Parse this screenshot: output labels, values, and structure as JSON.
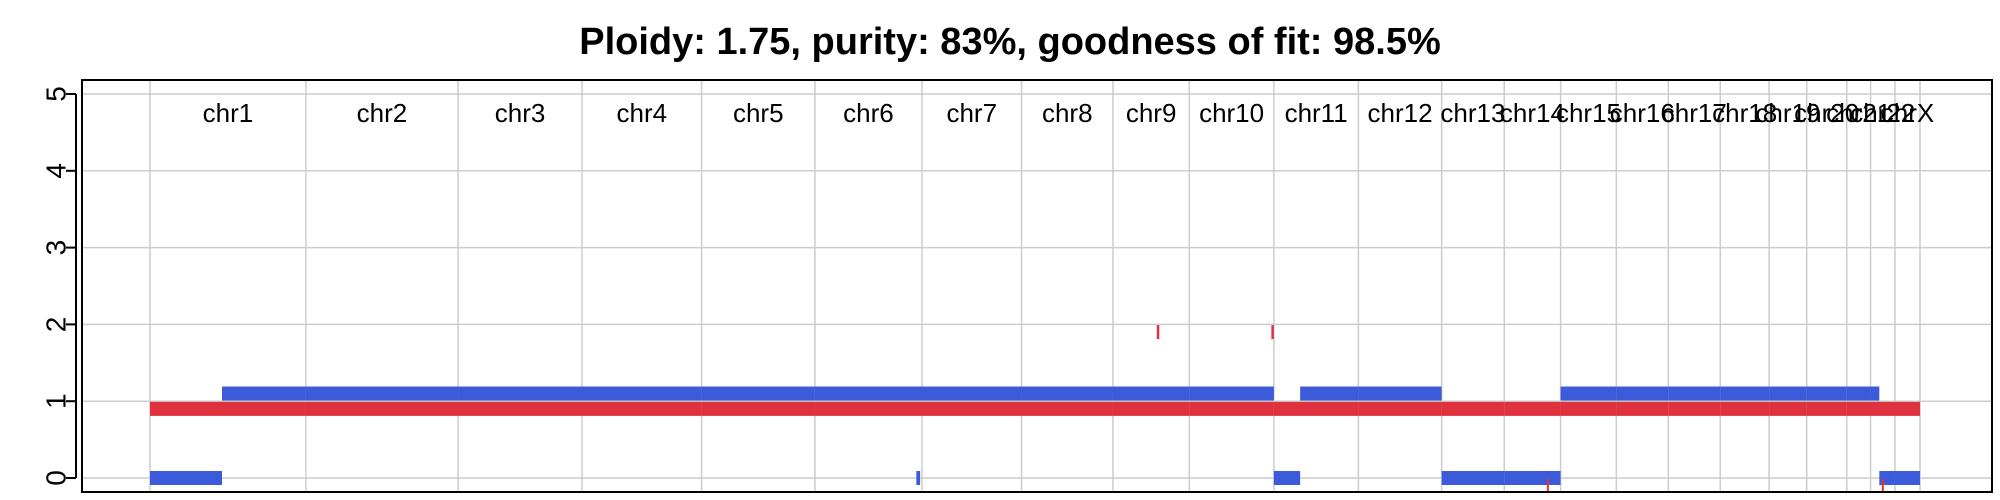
{
  "chart_data": {
    "type": "segments",
    "title": "Ploidy: 1.75, purity: 83%, goodness of fit: 98.5%",
    "xlabel": "",
    "ylabel": "",
    "ylim": [
      0,
      5
    ],
    "yticks": [
      0,
      1,
      2,
      3,
      4,
      5
    ],
    "grid": true,
    "colors": {
      "major": "#3b5bdb",
      "minor": "#e0313f",
      "grid": "#cccccc"
    },
    "chromosomes": [
      {
        "label": "chr1",
        "length": 249
      },
      {
        "label": "chr2",
        "length": 243
      },
      {
        "label": "chr3",
        "length": 198
      },
      {
        "label": "chr4",
        "length": 191
      },
      {
        "label": "chr5",
        "length": 181
      },
      {
        "label": "chr6",
        "length": 171
      },
      {
        "label": "chr7",
        "length": 159
      },
      {
        "label": "chr8",
        "length": 146
      },
      {
        "label": "chr9",
        "length": 122
      },
      {
        "label": "chr10",
        "length": 135
      },
      {
        "label": "chr11",
        "length": 135
      },
      {
        "label": "chr12",
        "length": 133
      },
      {
        "label": "chr13",
        "length": 100
      },
      {
        "label": "chr14",
        "length": 90
      },
      {
        "label": "chr15",
        "length": 89
      },
      {
        "label": "chr16",
        "length": 83
      },
      {
        "label": "chr17",
        "length": 83
      },
      {
        "label": "chr18",
        "length": 78
      },
      {
        "label": "chr19",
        "length": 60
      },
      {
        "label": "chr20",
        "length": 64
      },
      {
        "label": "chr21",
        "length": 38
      },
      {
        "label": "chr22",
        "length": 39
      },
      {
        "label": "chrX",
        "length": 40
      }
    ],
    "series": [
      {
        "segments": [
          {
            "chrom": "chr1",
            "start": 0,
            "end": 115,
            "value": 0
          },
          {
            "chrom": "chr1",
            "start": 115,
            "end": 249,
            "value": 1.1
          },
          {
            "chrom": "chr2",
            "start": 0,
            "end": 243,
            "value": 1.1
          },
          {
            "chrom": "chr3",
            "start": 0,
            "end": 198,
            "value": 1.1
          },
          {
            "chrom": "chr4",
            "start": 0,
            "end": 191,
            "value": 1.1
          },
          {
            "chrom": "chr5",
            "start": 0,
            "end": 181,
            "value": 1.1
          },
          {
            "chrom": "chr6",
            "start": 0,
            "end": 171,
            "value": 1.1
          },
          {
            "chrom": "chr6",
            "start": 162,
            "end": 168,
            "value": 0
          },
          {
            "chrom": "chr7",
            "start": 0,
            "end": 159,
            "value": 1.1
          },
          {
            "chrom": "chr8",
            "start": 0,
            "end": 146,
            "value": 1.1
          },
          {
            "chrom": "chr9",
            "start": 0,
            "end": 122,
            "value": 1.1
          },
          {
            "chrom": "chr10",
            "start": 0,
            "end": 135,
            "value": 1.1
          },
          {
            "chrom": "chr11",
            "start": 0,
            "end": 42,
            "value": 0
          },
          {
            "chrom": "chr11",
            "start": 42,
            "end": 135,
            "value": 1.1
          },
          {
            "chrom": "chr12",
            "start": 0,
            "end": 133,
            "value": 1.1
          },
          {
            "chrom": "chr13",
            "start": 0,
            "end": 100,
            "value": 0
          },
          {
            "chrom": "chr14",
            "start": 0,
            "end": 90,
            "value": 0
          },
          {
            "chrom": "chr15",
            "start": 0,
            "end": 89,
            "value": 1.1
          },
          {
            "chrom": "chr16",
            "start": 0,
            "end": 83,
            "value": 1.1
          },
          {
            "chrom": "chr17",
            "start": 0,
            "end": 83,
            "value": 1.1
          },
          {
            "chrom": "chr18",
            "start": 0,
            "end": 78,
            "value": 1.1
          },
          {
            "chrom": "chr19",
            "start": 0,
            "end": 60,
            "value": 1.1
          },
          {
            "chrom": "chr20",
            "start": 0,
            "end": 64,
            "value": 1.1
          },
          {
            "chrom": "chr21",
            "start": 0,
            "end": 38,
            "value": 1.1
          },
          {
            "chrom": "chr22",
            "start": 0,
            "end": 14,
            "value": 1.1
          },
          {
            "chrom": "chr22",
            "start": 14,
            "end": 39,
            "value": 0
          },
          {
            "chrom": "chrX",
            "start": 0,
            "end": 40,
            "value": 0
          }
        ]
      },
      {
        "segments": [
          {
            "chrom": "chr1",
            "start": 0,
            "end": 249,
            "value": 0.9
          },
          {
            "chrom": "chr2",
            "start": 0,
            "end": 243,
            "value": 0.9
          },
          {
            "chrom": "chr3",
            "start": 0,
            "end": 198,
            "value": 0.9
          },
          {
            "chrom": "chr4",
            "start": 0,
            "end": 191,
            "value": 0.9
          },
          {
            "chrom": "chr5",
            "start": 0,
            "end": 181,
            "value": 0.9
          },
          {
            "chrom": "chr6",
            "start": 0,
            "end": 171,
            "value": 0.9
          },
          {
            "chrom": "chr7",
            "start": 0,
            "end": 159,
            "value": 0.9
          },
          {
            "chrom": "chr8",
            "start": 0,
            "end": 146,
            "value": 0.9
          },
          {
            "chrom": "chr9",
            "start": 0,
            "end": 122,
            "value": 0.9
          },
          {
            "chrom": "chr9",
            "start": 70,
            "end": 74,
            "value": 1.9
          },
          {
            "chrom": "chr10",
            "start": 0,
            "end": 135,
            "value": 0.9
          },
          {
            "chrom": "chr10",
            "start": 131,
            "end": 135,
            "value": 1.9
          },
          {
            "chrom": "chr11",
            "start": 0,
            "end": 135,
            "value": 0.9
          },
          {
            "chrom": "chr12",
            "start": 0,
            "end": 133,
            "value": 0.9
          },
          {
            "chrom": "chr13",
            "start": 0,
            "end": 100,
            "value": 0.9
          },
          {
            "chrom": "chr14",
            "start": 0,
            "end": 90,
            "value": 0.9
          },
          {
            "chrom": "chr14",
            "start": 68,
            "end": 70,
            "value": -0.1
          },
          {
            "chrom": "chr15",
            "start": 0,
            "end": 89,
            "value": 0.9
          },
          {
            "chrom": "chr16",
            "start": 0,
            "end": 83,
            "value": 0.9
          },
          {
            "chrom": "chr17",
            "start": 0,
            "end": 83,
            "value": 0.9
          },
          {
            "chrom": "chr18",
            "start": 0,
            "end": 78,
            "value": 0.9
          },
          {
            "chrom": "chr19",
            "start": 0,
            "end": 60,
            "value": 0.9
          },
          {
            "chrom": "chr20",
            "start": 0,
            "end": 64,
            "value": 0.9
          },
          {
            "chrom": "chr21",
            "start": 0,
            "end": 38,
            "value": 0.9
          },
          {
            "chrom": "chr22",
            "start": 0,
            "end": 39,
            "value": 0.9
          },
          {
            "chrom": "chr22",
            "start": 18,
            "end": 20,
            "value": -0.1
          },
          {
            "chrom": "chrX",
            "start": 0,
            "end": 40,
            "value": 0.9
          }
        ]
      }
    ]
  }
}
